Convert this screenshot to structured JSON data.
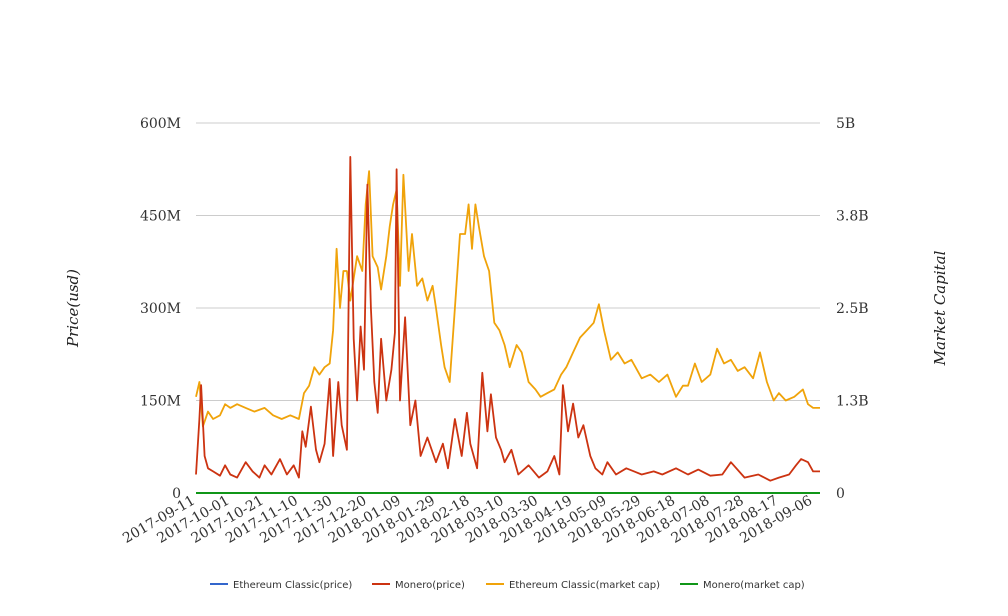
{
  "chart_data": {
    "type": "line",
    "ylabel_left": "Price(usd)",
    "ylabel_right": "Market Capital",
    "left_axis": {
      "ylim": [
        0,
        600000000
      ],
      "ticks": [
        "0",
        "150M",
        "300M",
        "450M",
        "600M"
      ]
    },
    "right_axis": {
      "ylim": [
        0,
        5000000000
      ],
      "ticks": [
        "0",
        "1.3B",
        "2.5B",
        "3.8B",
        "5B"
      ]
    },
    "x_range": [
      "2017-09-11",
      "2018-09-10"
    ],
    "x_ticks": [
      "2017-09-11",
      "2017-10-01",
      "2017-10-21",
      "2017-11-10",
      "2017-11-30",
      "2017-12-20",
      "2018-01-09",
      "2018-01-29",
      "2018-02-18",
      "2018-03-10",
      "2018-03-30",
      "2018-04-19",
      "2018-05-09",
      "2018-05-29",
      "2018-06-18",
      "2018-07-08",
      "2018-07-28",
      "2018-08-17",
      "2018-09-06"
    ],
    "grid": true,
    "legend_position": "bottom",
    "colors": {
      "eth_price": "#3366cc",
      "xmr_price": "#cc3311",
      "eth_mcap": "#f0a30a",
      "xmr_mcap": "#109618"
    },
    "series": [
      {
        "name": "Ethereum Classic(price)",
        "axis": "left",
        "points": [
          [
            "2017-09-11",
            0
          ],
          [
            "2018-09-10",
            0
          ]
        ]
      },
      {
        "name": "Monero(price)",
        "axis": "left",
        "points": [
          [
            "2017-09-11",
            30000000
          ],
          [
            "2017-09-13",
            120000000
          ],
          [
            "2017-09-14",
            175000000
          ],
          [
            "2017-09-16",
            60000000
          ],
          [
            "2017-09-18",
            40000000
          ],
          [
            "2017-09-21",
            35000000
          ],
          [
            "2017-09-25",
            28000000
          ],
          [
            "2017-09-28",
            45000000
          ],
          [
            "2017-10-01",
            30000000
          ],
          [
            "2017-10-05",
            25000000
          ],
          [
            "2017-10-10",
            50000000
          ],
          [
            "2017-10-14",
            35000000
          ],
          [
            "2017-10-18",
            25000000
          ],
          [
            "2017-10-21",
            45000000
          ],
          [
            "2017-10-25",
            30000000
          ],
          [
            "2017-10-30",
            55000000
          ],
          [
            "2017-11-03",
            30000000
          ],
          [
            "2017-11-07",
            45000000
          ],
          [
            "2017-11-10",
            25000000
          ],
          [
            "2017-11-12",
            100000000
          ],
          [
            "2017-11-14",
            75000000
          ],
          [
            "2017-11-17",
            140000000
          ],
          [
            "2017-11-20",
            70000000
          ],
          [
            "2017-11-22",
            50000000
          ],
          [
            "2017-11-25",
            80000000
          ],
          [
            "2017-11-28",
            185000000
          ],
          [
            "2017-11-30",
            60000000
          ],
          [
            "2017-12-03",
            180000000
          ],
          [
            "2017-12-05",
            110000000
          ],
          [
            "2017-12-08",
            70000000
          ],
          [
            "2017-12-10",
            545000000
          ],
          [
            "2017-12-12",
            250000000
          ],
          [
            "2017-12-14",
            150000000
          ],
          [
            "2017-12-16",
            270000000
          ],
          [
            "2017-12-18",
            200000000
          ],
          [
            "2017-12-20",
            500000000
          ],
          [
            "2017-12-22",
            300000000
          ],
          [
            "2017-12-24",
            180000000
          ],
          [
            "2017-12-26",
            130000000
          ],
          [
            "2017-12-28",
            250000000
          ],
          [
            "2017-12-31",
            150000000
          ],
          [
            "2018-01-03",
            200000000
          ],
          [
            "2018-01-05",
            260000000
          ],
          [
            "2018-01-06",
            525000000
          ],
          [
            "2018-01-08",
            150000000
          ],
          [
            "2018-01-11",
            285000000
          ],
          [
            "2018-01-14",
            110000000
          ],
          [
            "2018-01-17",
            150000000
          ],
          [
            "2018-01-20",
            60000000
          ],
          [
            "2018-01-24",
            90000000
          ],
          [
            "2018-01-29",
            50000000
          ],
          [
            "2018-02-02",
            80000000
          ],
          [
            "2018-02-05",
            40000000
          ],
          [
            "2018-02-09",
            120000000
          ],
          [
            "2018-02-13",
            60000000
          ],
          [
            "2018-02-16",
            130000000
          ],
          [
            "2018-02-18",
            80000000
          ],
          [
            "2018-02-22",
            40000000
          ],
          [
            "2018-02-25",
            195000000
          ],
          [
            "2018-02-28",
            100000000
          ],
          [
            "2018-03-02",
            160000000
          ],
          [
            "2018-03-05",
            90000000
          ],
          [
            "2018-03-08",
            70000000
          ],
          [
            "2018-03-10",
            50000000
          ],
          [
            "2018-03-14",
            70000000
          ],
          [
            "2018-03-18",
            30000000
          ],
          [
            "2018-03-24",
            45000000
          ],
          [
            "2018-03-30",
            25000000
          ],
          [
            "2018-04-04",
            35000000
          ],
          [
            "2018-04-08",
            60000000
          ],
          [
            "2018-04-11",
            30000000
          ],
          [
            "2018-04-13",
            175000000
          ],
          [
            "2018-04-16",
            100000000
          ],
          [
            "2018-04-19",
            145000000
          ],
          [
            "2018-04-22",
            90000000
          ],
          [
            "2018-04-25",
            110000000
          ],
          [
            "2018-04-29",
            60000000
          ],
          [
            "2018-05-02",
            40000000
          ],
          [
            "2018-05-06",
            30000000
          ],
          [
            "2018-05-09",
            50000000
          ],
          [
            "2018-05-14",
            30000000
          ],
          [
            "2018-05-20",
            40000000
          ],
          [
            "2018-05-29",
            30000000
          ],
          [
            "2018-06-05",
            35000000
          ],
          [
            "2018-06-10",
            30000000
          ],
          [
            "2018-06-18",
            40000000
          ],
          [
            "2018-06-25",
            30000000
          ],
          [
            "2018-07-01",
            38000000
          ],
          [
            "2018-07-08",
            28000000
          ],
          [
            "2018-07-15",
            30000000
          ],
          [
            "2018-07-20",
            50000000
          ],
          [
            "2018-07-28",
            25000000
          ],
          [
            "2018-08-05",
            30000000
          ],
          [
            "2018-08-12",
            20000000
          ],
          [
            "2018-08-17",
            25000000
          ],
          [
            "2018-08-23",
            30000000
          ],
          [
            "2018-08-27",
            45000000
          ],
          [
            "2018-08-30",
            55000000
          ],
          [
            "2018-09-03",
            50000000
          ],
          [
            "2018-09-06",
            35000000
          ],
          [
            "2018-09-10",
            35000000
          ]
        ]
      },
      {
        "name": "Ethereum Classic(market cap)",
        "axis": "right",
        "points": [
          [
            "2017-09-11",
            1300000000
          ],
          [
            "2017-09-13",
            1500000000
          ],
          [
            "2017-09-15",
            900000000
          ],
          [
            "2017-09-18",
            1100000000
          ],
          [
            "2017-09-21",
            1000000000
          ],
          [
            "2017-09-25",
            1050000000
          ],
          [
            "2017-09-28",
            1200000000
          ],
          [
            "2017-10-01",
            1150000000
          ],
          [
            "2017-10-05",
            1200000000
          ],
          [
            "2017-10-10",
            1150000000
          ],
          [
            "2017-10-15",
            1100000000
          ],
          [
            "2017-10-21",
            1150000000
          ],
          [
            "2017-10-26",
            1050000000
          ],
          [
            "2017-10-31",
            1000000000
          ],
          [
            "2017-11-05",
            1050000000
          ],
          [
            "2017-11-10",
            1000000000
          ],
          [
            "2017-11-13",
            1350000000
          ],
          [
            "2017-11-16",
            1450000000
          ],
          [
            "2017-11-19",
            1700000000
          ],
          [
            "2017-11-22",
            1600000000
          ],
          [
            "2017-11-25",
            1700000000
          ],
          [
            "2017-11-28",
            1750000000
          ],
          [
            "2017-11-30",
            2200000000
          ],
          [
            "2017-12-02",
            3300000000
          ],
          [
            "2017-12-04",
            2500000000
          ],
          [
            "2017-12-06",
            3000000000
          ],
          [
            "2017-12-08",
            3000000000
          ],
          [
            "2017-12-10",
            2600000000
          ],
          [
            "2017-12-12",
            2900000000
          ],
          [
            "2017-12-14",
            3200000000
          ],
          [
            "2017-12-17",
            3000000000
          ],
          [
            "2017-12-19",
            3900000000
          ],
          [
            "2017-12-21",
            4350000000
          ],
          [
            "2017-12-23",
            3200000000
          ],
          [
            "2017-12-26",
            3050000000
          ],
          [
            "2017-12-28",
            2750000000
          ],
          [
            "2017-12-31",
            3200000000
          ],
          [
            "2018-01-02",
            3600000000
          ],
          [
            "2018-01-04",
            3900000000
          ],
          [
            "2018-01-06",
            4100000000
          ],
          [
            "2018-01-08",
            2800000000
          ],
          [
            "2018-01-10",
            4300000000
          ],
          [
            "2018-01-13",
            3000000000
          ],
          [
            "2018-01-15",
            3500000000
          ],
          [
            "2018-01-18",
            2800000000
          ],
          [
            "2018-01-21",
            2900000000
          ],
          [
            "2018-01-24",
            2600000000
          ],
          [
            "2018-01-27",
            2800000000
          ],
          [
            "2018-01-29",
            2500000000
          ],
          [
            "2018-02-01",
            2000000000
          ],
          [
            "2018-02-03",
            1700000000
          ],
          [
            "2018-02-06",
            1500000000
          ],
          [
            "2018-02-09",
            2500000000
          ],
          [
            "2018-02-12",
            3500000000
          ],
          [
            "2018-02-15",
            3500000000
          ],
          [
            "2018-02-17",
            3900000000
          ],
          [
            "2018-02-19",
            3300000000
          ],
          [
            "2018-02-21",
            3900000000
          ],
          [
            "2018-02-23",
            3600000000
          ],
          [
            "2018-02-26",
            3200000000
          ],
          [
            "2018-03-01",
            3000000000
          ],
          [
            "2018-03-04",
            2300000000
          ],
          [
            "2018-03-07",
            2200000000
          ],
          [
            "2018-03-10",
            2000000000
          ],
          [
            "2018-03-13",
            1700000000
          ],
          [
            "2018-03-17",
            2000000000
          ],
          [
            "2018-03-20",
            1900000000
          ],
          [
            "2018-03-24",
            1500000000
          ],
          [
            "2018-03-28",
            1400000000
          ],
          [
            "2018-03-31",
            1300000000
          ],
          [
            "2018-04-04",
            1350000000
          ],
          [
            "2018-04-08",
            1400000000
          ],
          [
            "2018-04-12",
            1600000000
          ],
          [
            "2018-04-15",
            1700000000
          ],
          [
            "2018-04-19",
            1900000000
          ],
          [
            "2018-04-23",
            2100000000
          ],
          [
            "2018-04-27",
            2200000000
          ],
          [
            "2018-05-01",
            2300000000
          ],
          [
            "2018-05-04",
            2550000000
          ],
          [
            "2018-05-07",
            2200000000
          ],
          [
            "2018-05-11",
            1800000000
          ],
          [
            "2018-05-15",
            1900000000
          ],
          [
            "2018-05-19",
            1750000000
          ],
          [
            "2018-05-23",
            1800000000
          ],
          [
            "2018-05-29",
            1550000000
          ],
          [
            "2018-06-03",
            1600000000
          ],
          [
            "2018-06-08",
            1500000000
          ],
          [
            "2018-06-13",
            1600000000
          ],
          [
            "2018-06-18",
            1300000000
          ],
          [
            "2018-06-22",
            1450000000
          ],
          [
            "2018-06-25",
            1450000000
          ],
          [
            "2018-06-29",
            1750000000
          ],
          [
            "2018-07-03",
            1500000000
          ],
          [
            "2018-07-08",
            1600000000
          ],
          [
            "2018-07-12",
            1950000000
          ],
          [
            "2018-07-16",
            1750000000
          ],
          [
            "2018-07-20",
            1800000000
          ],
          [
            "2018-07-24",
            1650000000
          ],
          [
            "2018-07-28",
            1700000000
          ],
          [
            "2018-08-02",
            1550000000
          ],
          [
            "2018-08-06",
            1900000000
          ],
          [
            "2018-08-10",
            1500000000
          ],
          [
            "2018-08-14",
            1250000000
          ],
          [
            "2018-08-17",
            1350000000
          ],
          [
            "2018-08-21",
            1250000000
          ],
          [
            "2018-08-26",
            1300000000
          ],
          [
            "2018-08-31",
            1400000000
          ],
          [
            "2018-09-03",
            1200000000
          ],
          [
            "2018-09-06",
            1150000000
          ],
          [
            "2018-09-10",
            1150000000
          ]
        ]
      },
      {
        "name": "Monero(market cap)",
        "axis": "right",
        "points": [
          [
            "2017-09-11",
            0
          ],
          [
            "2018-09-10",
            0
          ]
        ]
      }
    ]
  }
}
